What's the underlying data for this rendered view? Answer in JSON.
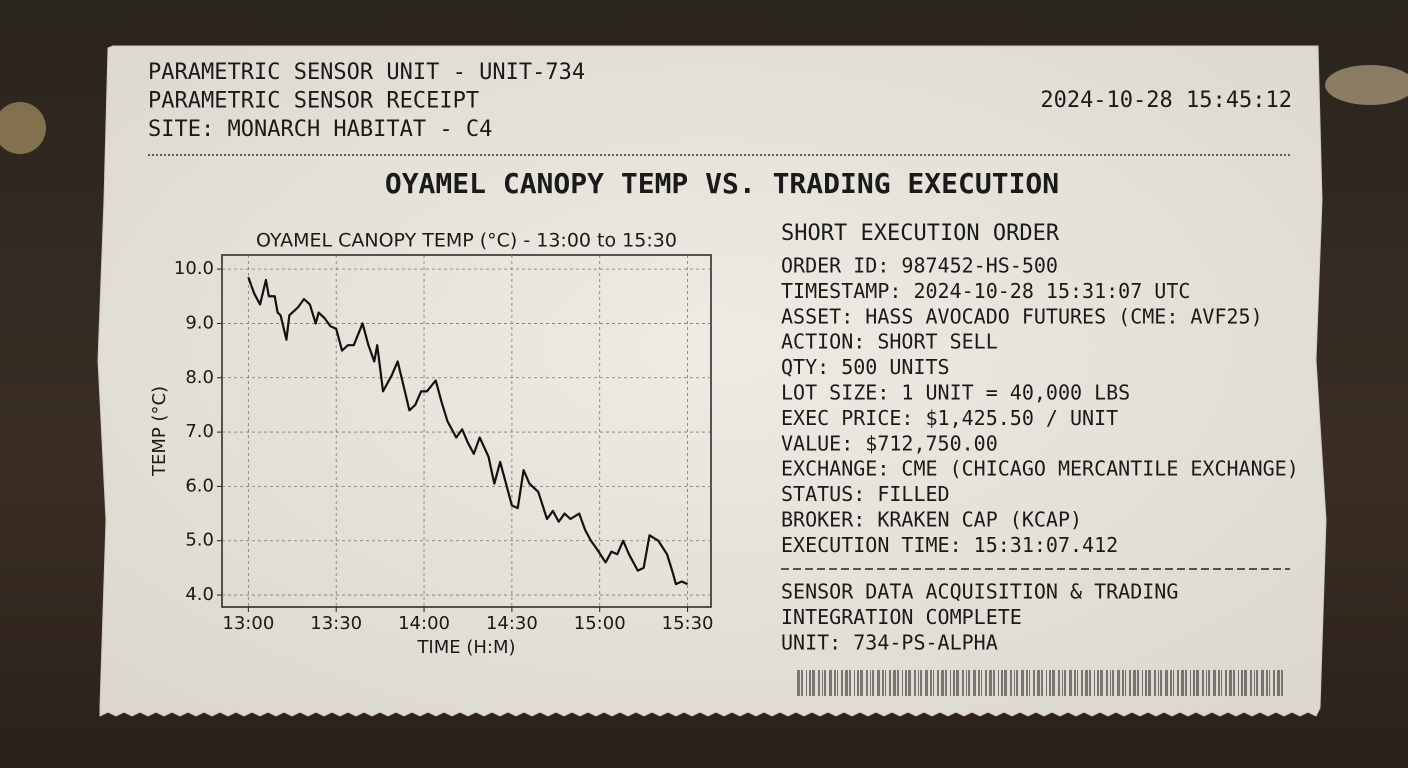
{
  "header": {
    "lines": [
      "PARAMETRIC SENSOR UNIT - UNIT-734",
      "PARAMETRIC SENSOR RECEIPT",
      "SITE: MONARCH HABITAT - C4"
    ],
    "timestamp": "2024-10-28 15:45:12"
  },
  "title": "OYAMEL CANOPY TEMP VS. TRADING EXECUTION",
  "chart_data": {
    "type": "line",
    "title": "OYAMEL CANOPY TEMP (°C) - 13:00 to 15:30",
    "x_label": "TIME (H:M)",
    "y_label": "TEMP (°C)",
    "color": "#111111",
    "grid": true,
    "x": [
      "13:00",
      "13:02",
      "13:04",
      "13:06",
      "13:07",
      "13:09",
      "13:10",
      "13:11",
      "13:13",
      "13:14",
      "13:17",
      "13:19",
      "13:21",
      "13:23",
      "13:24",
      "13:26",
      "13:28",
      "13:30",
      "13:32",
      "13:34",
      "13:36",
      "13:39",
      "13:41",
      "13:43",
      "13:44",
      "13:46",
      "13:49",
      "13:51",
      "13:53",
      "13:55",
      "13:57",
      "13:59",
      "14:01",
      "14:04",
      "14:06",
      "14:08",
      "14:11",
      "14:13",
      "14:15",
      "14:17",
      "14:19",
      "14:22",
      "14:24",
      "14:26",
      "14:28",
      "14:30",
      "14:32",
      "14:34",
      "14:36",
      "14:39",
      "14:42",
      "14:44",
      "14:46",
      "14:48",
      "14:50",
      "14:53",
      "14:55",
      "14:57",
      "14:59",
      "15:02",
      "15:04",
      "15:06",
      "15:08",
      "15:10",
      "15:13",
      "15:15",
      "15:17",
      "15:20",
      "15:23",
      "15:25",
      "15:26",
      "15:28",
      "15:30"
    ],
    "values": [
      9.85,
      9.55,
      9.35,
      9.8,
      9.5,
      9.5,
      9.2,
      9.15,
      8.7,
      9.15,
      9.3,
      9.45,
      9.35,
      9.0,
      9.2,
      9.1,
      8.95,
      8.9,
      8.5,
      8.6,
      8.6,
      9.0,
      8.6,
      8.3,
      8.6,
      7.75,
      8.05,
      8.3,
      7.85,
      7.4,
      7.5,
      7.75,
      7.75,
      7.95,
      7.55,
      7.2,
      6.9,
      7.05,
      6.8,
      6.6,
      6.9,
      6.55,
      6.05,
      6.45,
      6.05,
      5.65,
      5.6,
      6.3,
      6.05,
      5.9,
      5.4,
      5.55,
      5.35,
      5.5,
      5.4,
      5.5,
      5.2,
      5.0,
      4.85,
      4.6,
      4.8,
      4.75,
      5.0,
      4.75,
      4.45,
      4.5,
      5.1,
      5.0,
      4.75,
      4.4,
      4.2,
      4.25,
      4.2
    ],
    "xlim": [
      "12:51",
      "15:38"
    ],
    "xticks": [
      "13:00",
      "13:30",
      "14:00",
      "14:30",
      "15:00",
      "15:30"
    ],
    "ylim": [
      3.78,
      10.26
    ],
    "yticks": [
      {
        "value": 4,
        "label": "4.0"
      },
      {
        "value": 5,
        "label": "5.0"
      },
      {
        "value": 6,
        "label": "6.0"
      },
      {
        "value": 7,
        "label": "7.0"
      },
      {
        "value": 8,
        "label": "8.0"
      },
      {
        "value": 9,
        "label": "9.0"
      },
      {
        "value": 10,
        "label": "10.0"
      }
    ]
  },
  "order": {
    "title": "SHORT EXECUTION ORDER",
    "lines": [
      "ORDER ID: 987452-HS-500",
      "TIMESTAMP: 2024-10-28 15:31:07 UTC",
      "ASSET: HASS AVOCADO FUTURES (CME: AVF25)",
      "ACTION: SHORT SELL",
      "QTY: 500 UNITS",
      "LOT SIZE: 1 UNIT = 40,000 LBS",
      "EXEC PRICE: $1,425.50 / UNIT",
      "VALUE: $712,750.00",
      "EXCHANGE: CME (CHICAGO MERCANTILE EXCHANGE)",
      "STATUS: FILLED",
      "BROKER: KRAKEN CAP (KCAP)",
      "EXECUTION TIME: 15:31:07.412"
    ]
  },
  "footer": {
    "lines": [
      "SENSOR DATA ACQUISITION & TRADING",
      "INTEGRATION COMPLETE",
      "UNIT: 734-PS-ALPHA"
    ]
  }
}
